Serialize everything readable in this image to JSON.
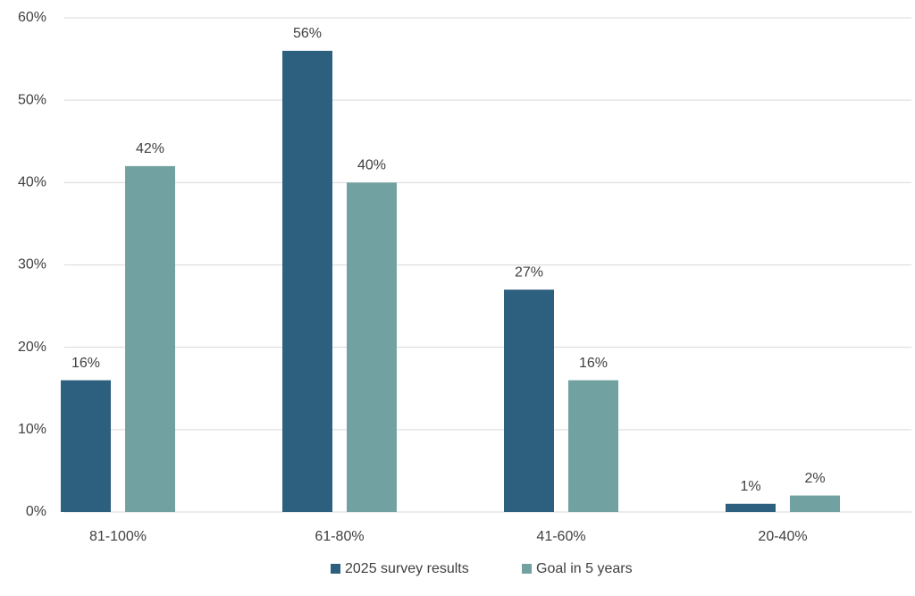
{
  "chart_data": {
    "type": "bar",
    "categories": [
      "81-100%",
      "61-80%",
      "41-60%",
      "20-40%"
    ],
    "series": [
      {
        "name": "2025 survey results",
        "color": "#2d5f7e",
        "values": [
          16,
          56,
          27,
          1
        ],
        "value_labels": [
          "16%",
          "56%",
          "27%",
          "1%"
        ]
      },
      {
        "name": "Goal in 5 years",
        "color": "#71a1a0",
        "values": [
          42,
          40,
          16,
          2
        ],
        "value_labels": [
          "42%",
          "40%",
          "16%",
          "2%"
        ]
      }
    ],
    "ylim": [
      0,
      60
    ],
    "yticks": [
      {
        "value": 0,
        "label": "0%"
      },
      {
        "value": 10,
        "label": "10%"
      },
      {
        "value": 20,
        "label": "20%"
      },
      {
        "value": 30,
        "label": "30%"
      },
      {
        "value": 40,
        "label": "40%"
      },
      {
        "value": 50,
        "label": "50%"
      },
      {
        "value": 60,
        "label": "60%"
      }
    ],
    "grid": true,
    "legend": "bottom"
  }
}
